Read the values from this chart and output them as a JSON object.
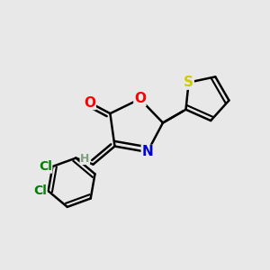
{
  "background_color": "#e8e8e8",
  "bond_color": "#000000",
  "bond_width": 1.8,
  "atom_colors": {
    "O": "#ff0000",
    "N": "#0000cc",
    "S": "#cccc00",
    "Cl": "#008000",
    "H": "#7f9f7f",
    "C": "#000000"
  },
  "font_size": 10
}
